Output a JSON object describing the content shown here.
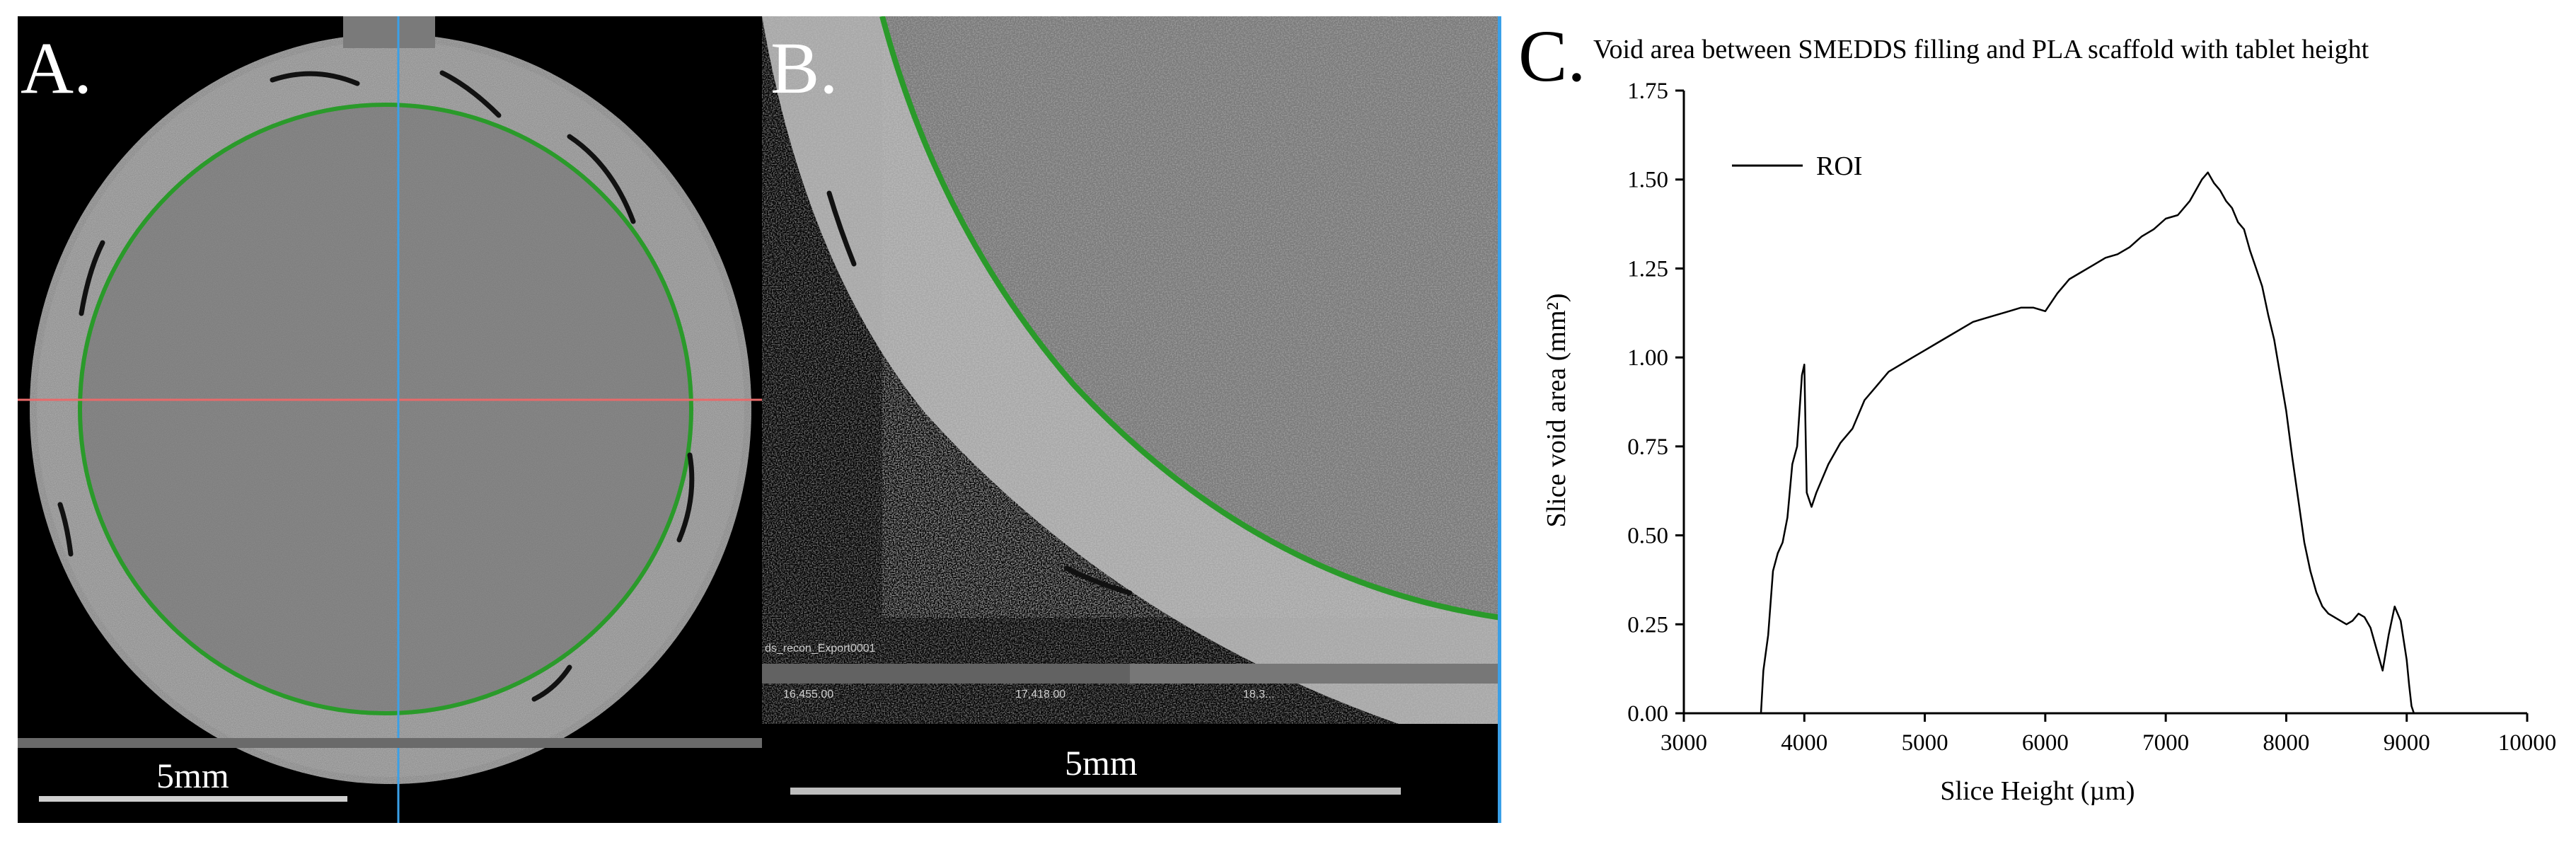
{
  "panels": {
    "a": {
      "letter": "A.",
      "scalebar_label": "5mm"
    },
    "b": {
      "letter": "B.",
      "scalebar_label": "5mm",
      "export_label": "ds_recon_Export0001",
      "ticks": [
        "16,455.00",
        "17,418.00",
        "18,3..."
      ]
    },
    "c": {
      "letter": "C."
    }
  },
  "chart_data": {
    "type": "line",
    "title": "Void area between SMEDDS filling and PLA scaffold with tablet height",
    "xlabel": "Slice Height (µm)",
    "ylabel": "Slice void area (mm²)",
    "xlim": [
      3000,
      10000
    ],
    "ylim": [
      0,
      1.75
    ],
    "xticks": [
      "3000",
      "4000",
      "5000",
      "6000",
      "7000",
      "8000",
      "9000",
      "10000"
    ],
    "yticks": [
      "0.00",
      "0.25",
      "0.50",
      "0.75",
      "1.00",
      "1.25",
      "1.50",
      "1.75"
    ],
    "grid": false,
    "legend": "top-left",
    "series": [
      {
        "name": "ROI",
        "x": [
          3640,
          3660,
          3700,
          3740,
          3780,
          3820,
          3860,
          3900,
          3940,
          3980,
          4000,
          4020,
          4060,
          4100,
          4200,
          4300,
          4400,
          4500,
          4600,
          4700,
          4800,
          4900,
          5000,
          5100,
          5200,
          5300,
          5400,
          5500,
          5600,
          5700,
          5800,
          5900,
          6000,
          6100,
          6200,
          6300,
          6400,
          6500,
          6600,
          6700,
          6800,
          6900,
          7000,
          7100,
          7200,
          7300,
          7350,
          7400,
          7450,
          7500,
          7550,
          7600,
          7650,
          7700,
          7750,
          7800,
          7850,
          7900,
          7950,
          8000,
          8050,
          8100,
          8150,
          8200,
          8250,
          8300,
          8350,
          8400,
          8450,
          8500,
          8550,
          8600,
          8650,
          8700,
          8750,
          8800,
          8850,
          8900,
          8950,
          9000,
          9020,
          9040,
          9060
        ],
        "values": [
          0.0,
          0.12,
          0.22,
          0.4,
          0.45,
          0.48,
          0.55,
          0.7,
          0.75,
          0.95,
          0.98,
          0.62,
          0.58,
          0.62,
          0.7,
          0.76,
          0.8,
          0.88,
          0.92,
          0.96,
          0.98,
          1.0,
          1.02,
          1.04,
          1.06,
          1.08,
          1.1,
          1.11,
          1.12,
          1.13,
          1.14,
          1.14,
          1.13,
          1.18,
          1.22,
          1.24,
          1.26,
          1.28,
          1.29,
          1.31,
          1.34,
          1.36,
          1.39,
          1.4,
          1.44,
          1.5,
          1.52,
          1.49,
          1.47,
          1.44,
          1.42,
          1.38,
          1.36,
          1.3,
          1.25,
          1.2,
          1.12,
          1.05,
          0.95,
          0.85,
          0.72,
          0.6,
          0.48,
          0.4,
          0.34,
          0.3,
          0.28,
          0.27,
          0.26,
          0.25,
          0.26,
          0.28,
          0.27,
          0.24,
          0.18,
          0.12,
          0.22,
          0.3,
          0.26,
          0.15,
          0.08,
          0.02,
          0.0
        ]
      }
    ]
  }
}
